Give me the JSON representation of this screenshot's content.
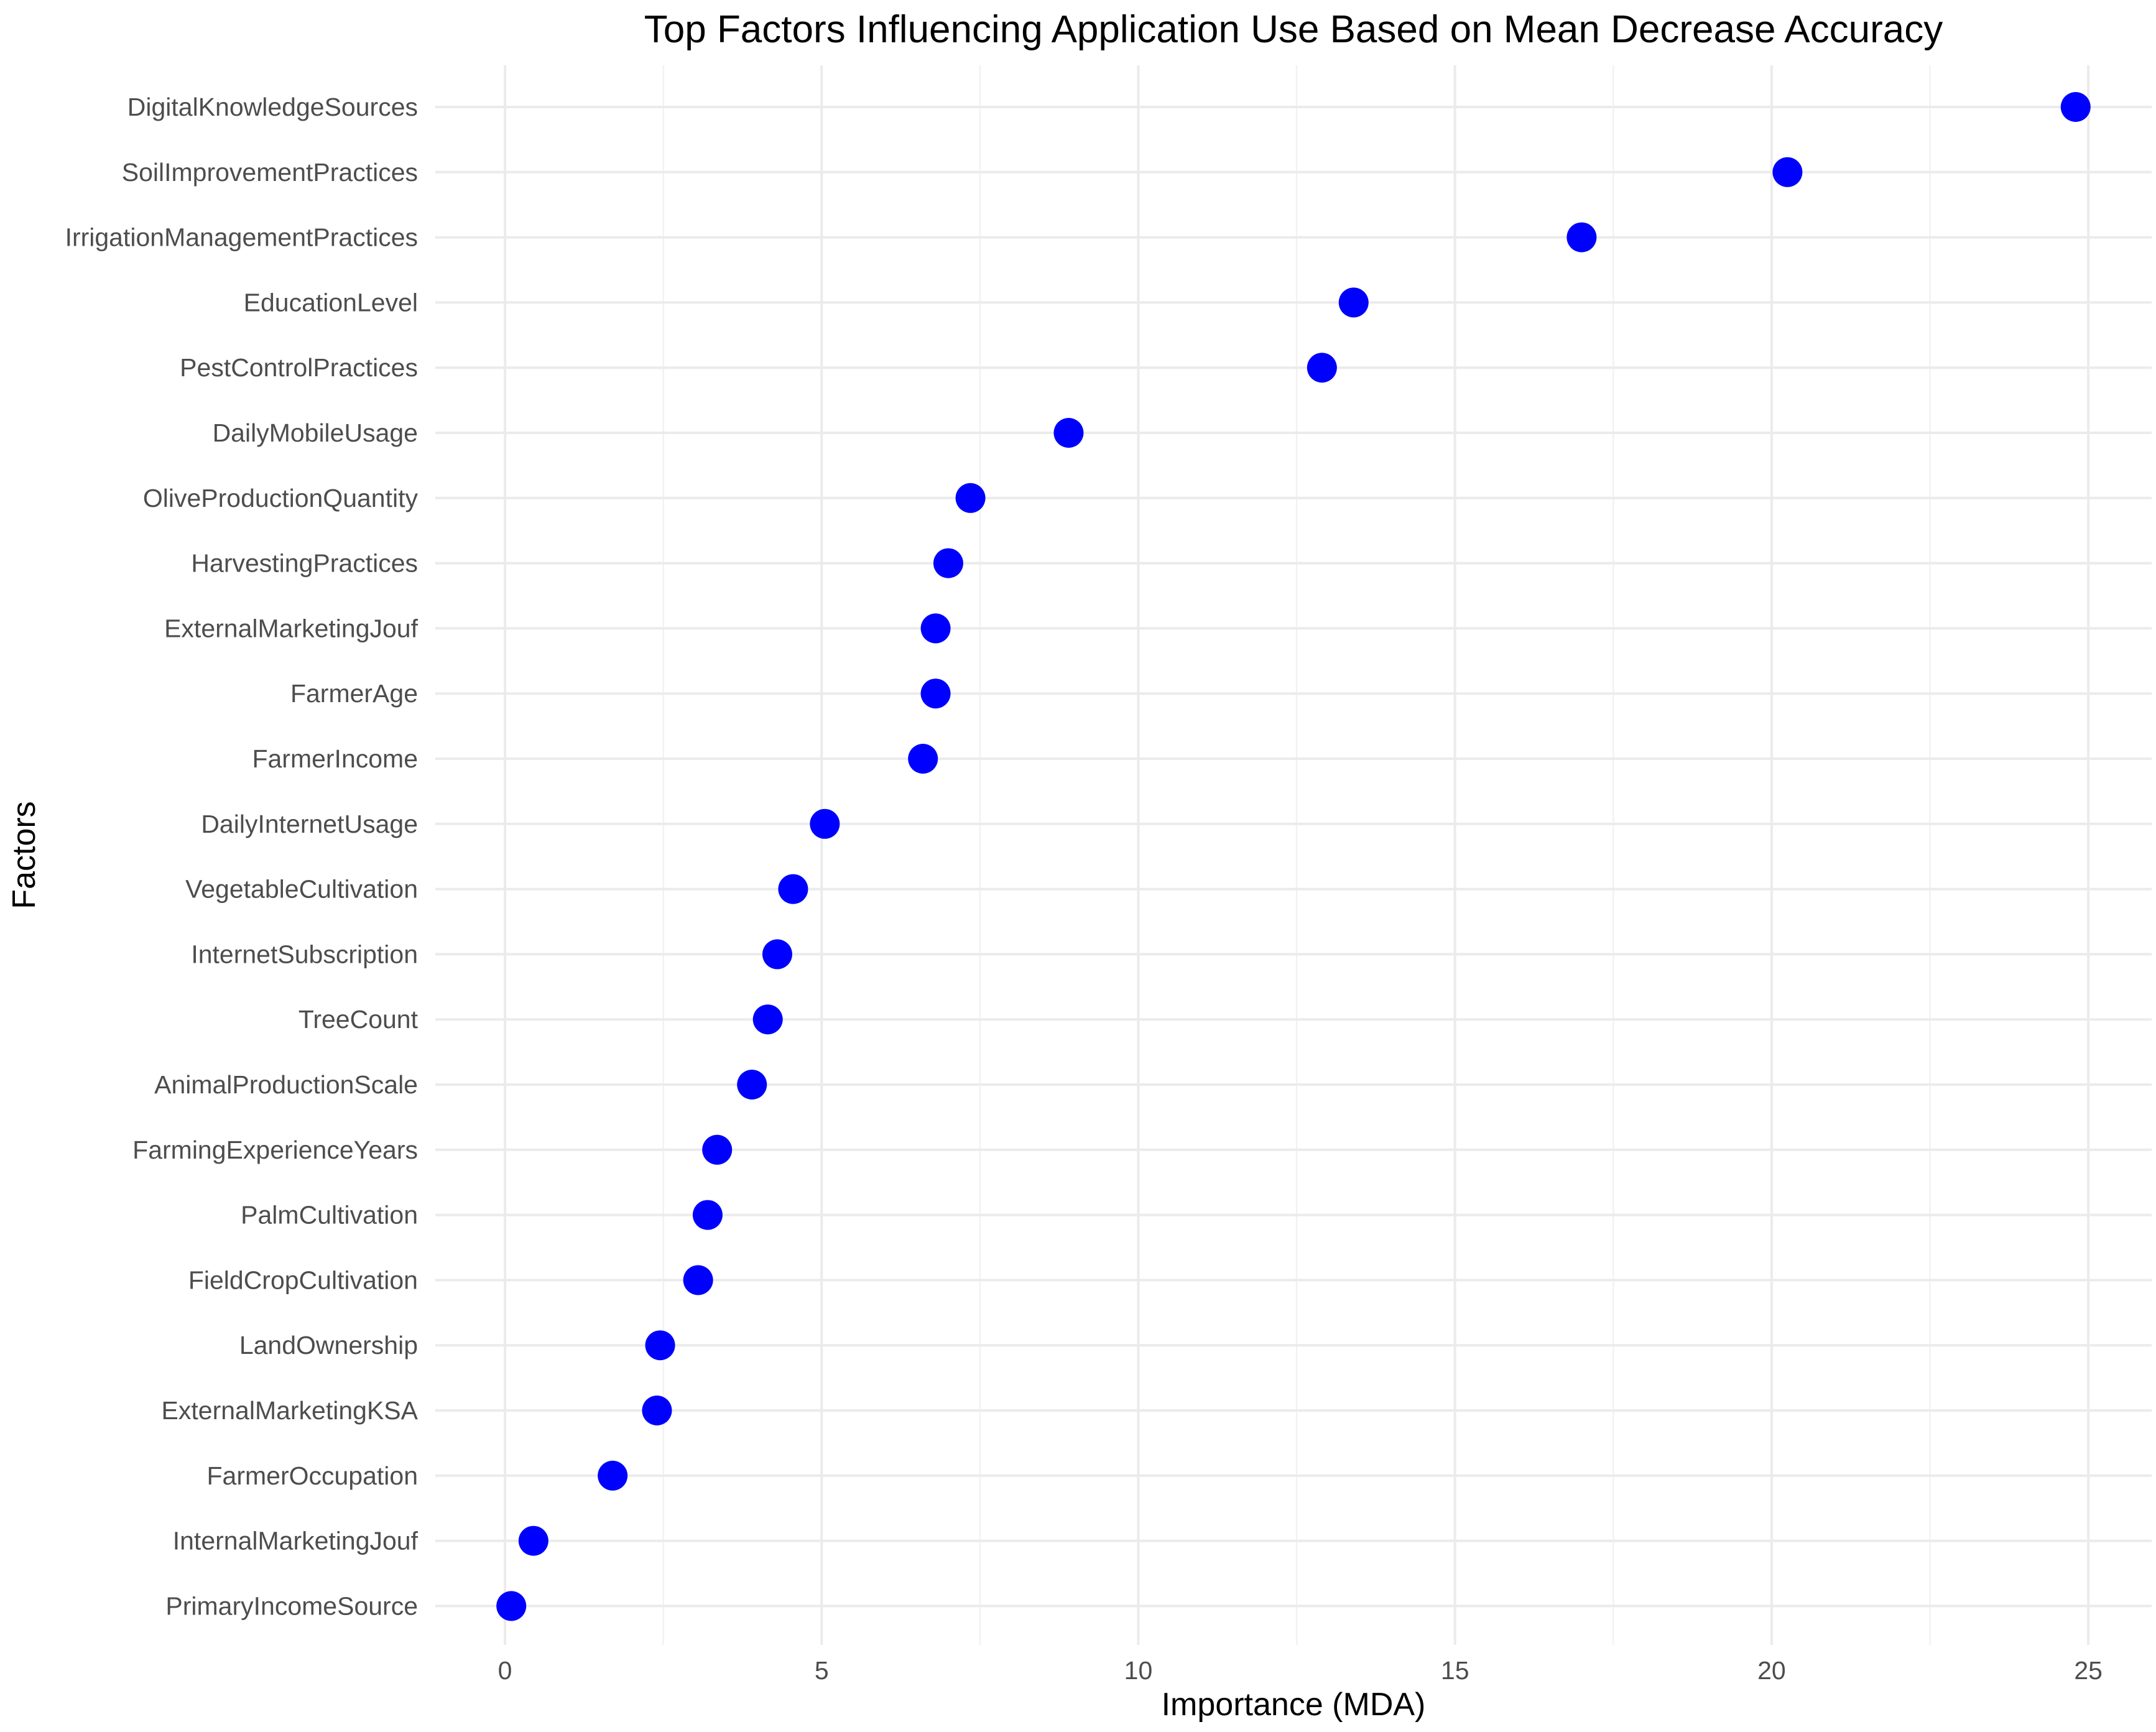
{
  "chart_data": {
    "type": "scatter",
    "title": "Top Factors Influencing Application Use Based on Mean Decrease Accuracy",
    "xlabel": "Importance (MDA)",
    "ylabel": "Factors",
    "xlim": [
      -1.1,
      26.0
    ],
    "xticks": [
      "0",
      "5",
      "10",
      "15",
      "20",
      "25"
    ],
    "grid": true,
    "point_color": "#0000ff",
    "categories": [
      "DigitalKnowledgeSources",
      "SoilImprovementPractices",
      "IrrigationManagementPractices",
      "EducationLevel",
      "PestControlPractices",
      "DailyMobileUsage",
      "OliveProductionQuantity",
      "HarvestingPractices",
      "ExternalMarketingJouf",
      "FarmerAge",
      "FarmerIncome",
      "DailyInternetUsage",
      "VegetableCultivation",
      "InternetSubscription",
      "TreeCount",
      "AnimalProductionScale",
      "FarmingExperienceYears",
      "PalmCultivation",
      "FieldCropCultivation",
      "LandOwnership",
      "ExternalMarketingKSA",
      "FarmerOccupation",
      "InternalMarketingJouf",
      "PrimaryIncomeSource"
    ],
    "values": [
      24.8,
      20.25,
      17.0,
      13.4,
      12.9,
      8.9,
      7.35,
      7.0,
      6.8,
      6.8,
      6.6,
      5.05,
      4.55,
      4.3,
      4.15,
      3.9,
      3.35,
      3.2,
      3.05,
      2.45,
      2.4,
      1.7,
      0.45,
      0.1
    ]
  }
}
